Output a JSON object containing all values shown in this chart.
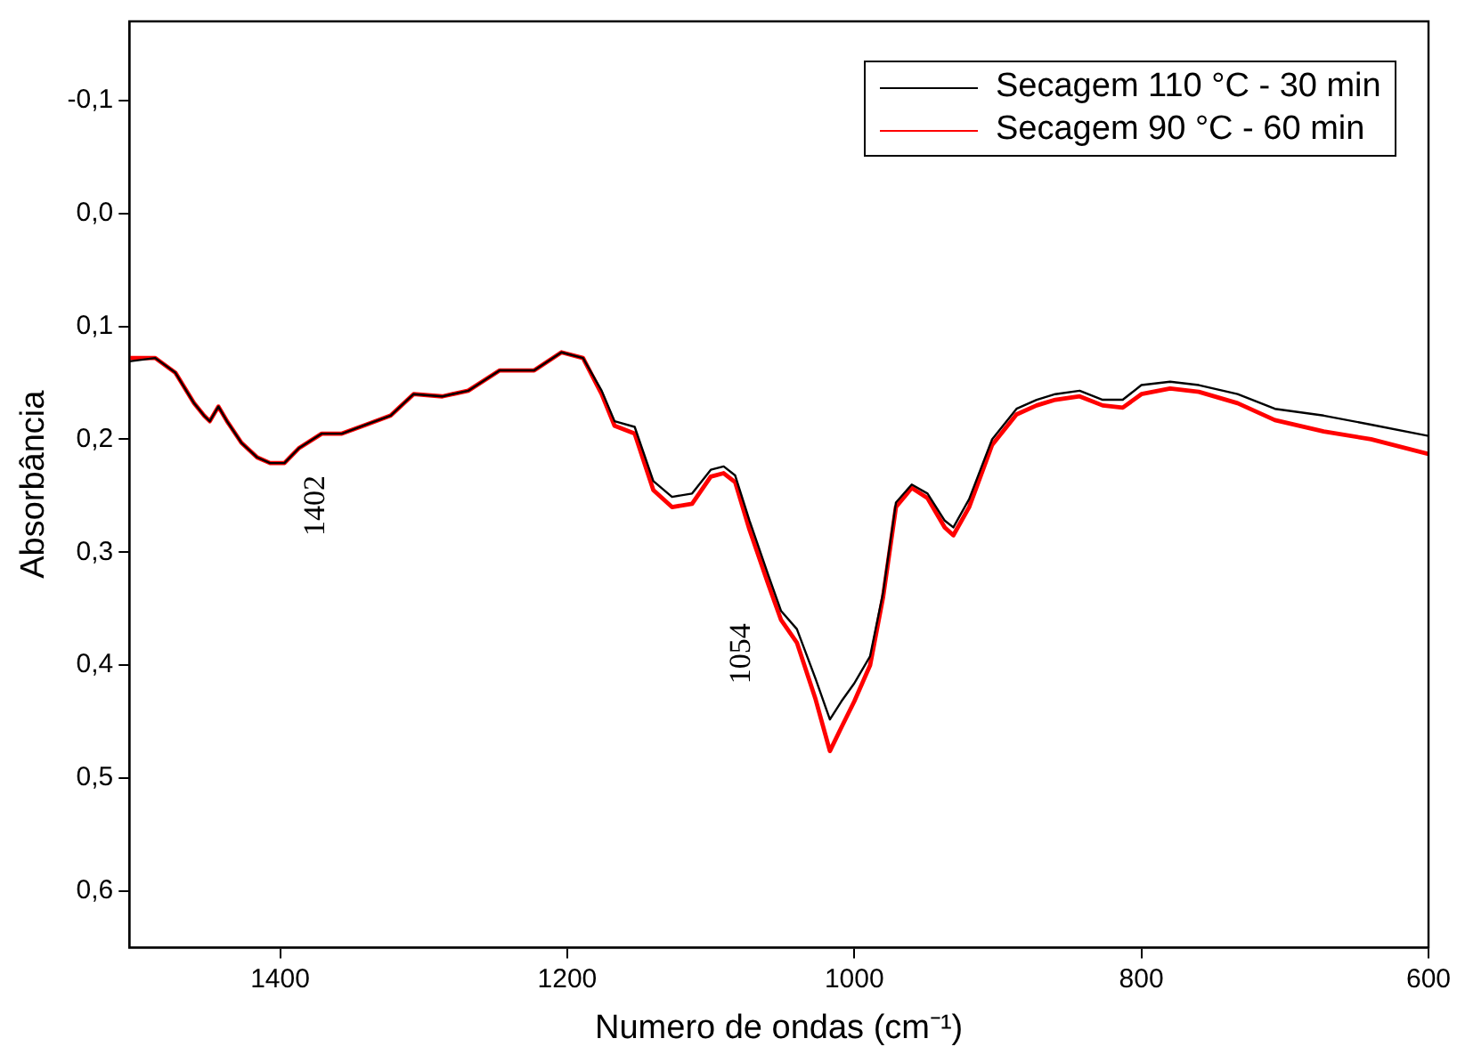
{
  "chart_data": {
    "type": "line",
    "xlabel": "Numero de ondas (cm⁻¹)",
    "ylabel": "Absorbância",
    "xlim": [
      1505,
      600
    ],
    "xticks": [
      1400,
      1200,
      1000,
      800,
      600
    ],
    "ylim": [
      0.65,
      -0.17
    ],
    "yticks": [
      {
        "value": -0.1,
        "label": "-0,1"
      },
      {
        "value": 0,
        "label": "0,0"
      },
      {
        "value": 0.1,
        "label": "0,1"
      },
      {
        "value": 0.2,
        "label": "0,2"
      },
      {
        "value": 0.3,
        "label": "0,3"
      },
      {
        "value": 0.4,
        "label": "0,4"
      },
      {
        "value": 0.5,
        "label": "0,5"
      },
      {
        "value": 0.6,
        "label": "0,6"
      }
    ],
    "grid": false,
    "legend": "top right",
    "marker": "none",
    "line_style": "solid",
    "annotations": [
      {
        "text": "1402",
        "x": 1397,
        "y": 0.221
      },
      {
        "text": "1054",
        "x": 1051,
        "y": 0.352
      }
    ],
    "series": [
      {
        "name": "Secagem 110 °C - 30 min",
        "color": "#000000",
        "x": [
          1505,
          1487,
          1473,
          1460,
          1453,
          1449,
          1443,
          1437,
          1427,
          1416,
          1407,
          1397,
          1387,
          1371,
          1357,
          1340,
          1323,
          1307,
          1287,
          1269,
          1247,
          1223,
          1204,
          1189,
          1176,
          1167,
          1153,
          1140,
          1127,
          1113,
          1100,
          1091,
          1083,
          1073,
          1060,
          1051,
          1040,
          1027,
          1017,
          1009,
          1000,
          989,
          980,
          971,
          960,
          949,
          937,
          931,
          920,
          904,
          887,
          873,
          860,
          843,
          827,
          813,
          800,
          780,
          760,
          733,
          707,
          673,
          640,
          600
        ],
        "values": [
          0.131,
          0.128,
          0.141,
          0.168,
          0.179,
          0.184,
          0.171,
          0.184,
          0.203,
          0.216,
          0.221,
          0.221,
          0.208,
          0.195,
          0.195,
          0.187,
          0.179,
          0.16,
          0.162,
          0.157,
          0.139,
          0.139,
          0.123,
          0.128,
          0.157,
          0.184,
          0.189,
          0.237,
          0.251,
          0.248,
          0.227,
          0.224,
          0.232,
          0.272,
          0.32,
          0.352,
          0.368,
          0.412,
          0.448,
          0.432,
          0.416,
          0.392,
          0.336,
          0.256,
          0.24,
          0.248,
          0.272,
          0.278,
          0.253,
          0.2,
          0.173,
          0.165,
          0.16,
          0.157,
          0.165,
          0.165,
          0.152,
          0.149,
          0.152,
          0.16,
          0.173,
          0.179,
          0.187,
          0.197
        ]
      },
      {
        "name": "Secagem 90 °C - 60 min",
        "color": "#ff0000",
        "x": [
          1505,
          1487,
          1473,
          1460,
          1453,
          1449,
          1443,
          1437,
          1427,
          1416,
          1407,
          1397,
          1387,
          1371,
          1357,
          1340,
          1323,
          1307,
          1287,
          1269,
          1247,
          1223,
          1204,
          1189,
          1176,
          1167,
          1153,
          1140,
          1127,
          1113,
          1100,
          1091,
          1083,
          1073,
          1060,
          1051,
          1040,
          1027,
          1017,
          1009,
          1000,
          989,
          980,
          971,
          960,
          949,
          937,
          931,
          920,
          904,
          887,
          873,
          860,
          843,
          827,
          813,
          800,
          780,
          760,
          733,
          707,
          673,
          640,
          600
        ],
        "values": [
          0.128,
          0.128,
          0.141,
          0.168,
          0.179,
          0.184,
          0.171,
          0.184,
          0.203,
          0.216,
          0.221,
          0.221,
          0.208,
          0.195,
          0.195,
          0.187,
          0.179,
          0.16,
          0.162,
          0.157,
          0.139,
          0.139,
          0.123,
          0.128,
          0.16,
          0.188,
          0.195,
          0.245,
          0.26,
          0.257,
          0.233,
          0.23,
          0.238,
          0.28,
          0.328,
          0.36,
          0.38,
          0.43,
          0.476,
          0.455,
          0.432,
          0.4,
          0.34,
          0.26,
          0.243,
          0.252,
          0.278,
          0.285,
          0.26,
          0.205,
          0.178,
          0.17,
          0.165,
          0.162,
          0.17,
          0.172,
          0.16,
          0.155,
          0.158,
          0.168,
          0.183,
          0.193,
          0.2,
          0.213
        ]
      }
    ]
  }
}
